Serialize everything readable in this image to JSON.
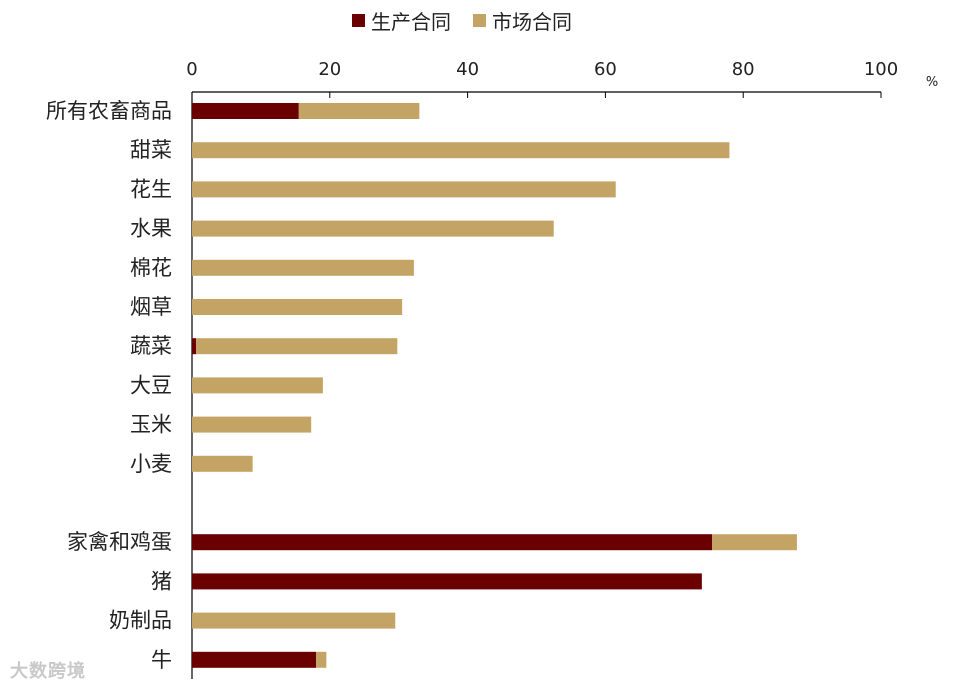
{
  "chart_data": {
    "type": "bar",
    "orientation": "horizontal",
    "stacked": true,
    "unit": "%",
    "xlim": [
      0,
      100
    ],
    "x_ticks": [
      0,
      20,
      40,
      60,
      80,
      100
    ],
    "legend": {
      "position": "top"
    },
    "categories": [
      "所有农畜商品",
      "甜菜",
      "花生",
      "水果",
      "棉花",
      "烟草",
      "蔬菜",
      "大豆",
      "玉米",
      "小麦",
      "",
      "家禽和鸡蛋",
      "猪",
      "奶制品",
      "牛"
    ],
    "series": [
      {
        "name": "生产合同",
        "color": "#6b0000",
        "values": [
          15.5,
          0,
          0,
          0,
          0,
          0,
          0.6,
          0,
          0,
          0,
          null,
          75.5,
          74,
          0,
          18
        ]
      },
      {
        "name": "市场合同",
        "color": "#c4a464",
        "values": [
          17.5,
          78,
          61.5,
          52.5,
          32.2,
          30.5,
          29.2,
          19,
          17.3,
          8.8,
          null,
          12.3,
          0,
          29.5,
          1.5
        ]
      }
    ]
  },
  "watermark": "大数跨境"
}
